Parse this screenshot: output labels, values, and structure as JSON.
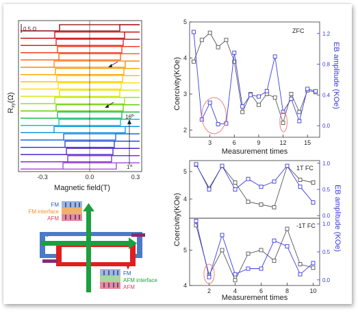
{
  "panel_a": {
    "scale_bar_label": "0.5 Ω",
    "ylabel_main": "R",
    "ylabel_sub": "xy",
    "ylabel_unit": "(Ω)",
    "xlabel": "Magnetic field(T)",
    "xticks": [
      "-0.3",
      "0.0",
      "0.3"
    ],
    "top_label": "16",
    "top_label_sup": "th",
    "bottom_label": "1",
    "bottom_label_sup": "st",
    "colors": [
      "#8b0000",
      "#c00000",
      "#e01818",
      "#f03a1a",
      "#ff5a14",
      "#ff7f00",
      "#ffa000",
      "#ffc200",
      "#ffe000",
      "#d8e800",
      "#a0e000",
      "#55cc00",
      "#1fb84a",
      "#00c0c8",
      "#008ce0",
      "#1060e0",
      "#2038d0",
      "#4a20c8",
      "#7a2ad0",
      "#a040e0"
    ]
  },
  "schematic": {
    "top_stack": {
      "line1": "FM",
      "line2": "FM interface",
      "line3": "AFM"
    },
    "bottom_stack": {
      "line1": "FM",
      "line2": "AFM interface",
      "line3": "AFM"
    },
    "colors": {
      "green": "#1aa040",
      "blue": "#4a7ac8",
      "red": "#e01e1e",
      "purple": "#8a2a6a",
      "fm_text": "#2060c0",
      "fmi_text": "#ff8c1a",
      "afm_text": "#e04060",
      "afmi_text": "#1aa040"
    }
  },
  "chart_data": [
    {
      "type": "line",
      "title": "ZFC",
      "xlabel": "Measurement times",
      "ylabel": "Coercivity(KOe)",
      "y2label": "EB amplitude  (KOe)",
      "xlim": [
        0.5,
        16.5
      ],
      "ylim": [
        1.8,
        5.0
      ],
      "y2lim": [
        -0.15,
        1.35
      ],
      "xticks": [
        3,
        6,
        9,
        12,
        15
      ],
      "yticks": [
        2,
        3,
        4,
        5
      ],
      "y2ticks": [
        0.0,
        0.4,
        0.8,
        1.2
      ],
      "series": [
        {
          "axis": "left",
          "color": "#555555",
          "x": [
            1,
            2,
            3,
            4,
            5,
            6,
            7,
            8,
            9,
            10,
            11,
            12,
            13,
            14,
            15,
            16
          ],
          "values": [
            3.9,
            4.5,
            4.7,
            4.3,
            4.5,
            3.9,
            2.5,
            3.0,
            2.7,
            3.0,
            2.9,
            2.2,
            3.0,
            2.5,
            3.1,
            3.05
          ]
        },
        {
          "axis": "right",
          "color": "#3a3ae0",
          "x": [
            1,
            2,
            3,
            4,
            5,
            6,
            7,
            8,
            9,
            10,
            11,
            12,
            13,
            14,
            15,
            16
          ],
          "values": [
            1.22,
            0.08,
            0.3,
            0.02,
            0.03,
            0.95,
            0.25,
            0.4,
            0.38,
            0.45,
            0.9,
            0.18,
            0.35,
            0.06,
            0.48,
            0.45
          ]
        }
      ],
      "annotations": [
        {
          "shape": "ellipse",
          "x": [
            2,
            5
          ],
          "y": [
            1.9,
            2.9
          ],
          "color": "#f08080"
        },
        {
          "shape": "ellipse",
          "x": [
            11.6,
            12.5
          ],
          "y": [
            1.95,
            2.5
          ],
          "color": "#f08080"
        }
      ]
    },
    {
      "type": "line",
      "title": "1T FC",
      "ylabel": "Coercivity(KOe)",
      "y2label": "EB amplitude  (KOe)",
      "xlim": [
        0.5,
        10.5
      ],
      "ylim": [
        3.3,
        5.4
      ],
      "y2lim": [
        -0.05,
        1.05
      ],
      "yticks": [
        4,
        5
      ],
      "y2ticks": [
        0.0,
        0.5,
        1.0
      ],
      "series": [
        {
          "axis": "left",
          "color": "#555555",
          "x": [
            1,
            2,
            3,
            4,
            5,
            6,
            7,
            8,
            9,
            10
          ],
          "values": [
            5.25,
            4.4,
            5.2,
            4.6,
            3.9,
            3.8,
            3.7,
            5.2,
            4.7,
            4.6
          ]
        },
        {
          "axis": "right",
          "color": "#3a3ae0",
          "x": [
            1,
            2,
            3,
            4,
            5,
            6,
            7,
            8,
            9,
            10
          ],
          "values": [
            0.98,
            0.5,
            0.95,
            0.5,
            0.7,
            0.55,
            0.65,
            0.95,
            0.55,
            0.25
          ]
        }
      ]
    },
    {
      "type": "line",
      "title": "-1T FC",
      "xlabel": "Measurement times",
      "ylabel": "Coercivity(KOe)",
      "y2label": "EB amplitude  (KOe)",
      "xlim": [
        0.5,
        10.5
      ],
      "ylim": [
        4.0,
        5.9
      ],
      "y2lim": [
        -0.1,
        1.1
      ],
      "xticks": [
        2,
        4,
        6,
        8,
        10
      ],
      "yticks": [
        4,
        5
      ],
      "y2ticks": [
        0.0,
        0.5,
        1.0
      ],
      "series": [
        {
          "axis": "left",
          "color": "#555555",
          "x": [
            1,
            2,
            3,
            4,
            5,
            6,
            7,
            8,
            9,
            10
          ],
          "values": [
            5.7,
            4.3,
            5.0,
            4.15,
            4.9,
            5.0,
            4.7,
            5.6,
            4.6,
            4.5
          ]
        },
        {
          "axis": "right",
          "color": "#3a3ae0",
          "x": [
            1,
            2,
            3,
            4,
            5,
            6,
            7,
            8,
            9,
            10
          ],
          "values": [
            1.05,
            0.05,
            0.8,
            0.1,
            0.2,
            0.2,
            0.7,
            0.6,
            0.1,
            0.3
          ]
        }
      ],
      "annotations": [
        {
          "shape": "ellipse",
          "x": [
            1.6,
            2.4
          ],
          "y": [
            4.05,
            4.6
          ],
          "color": "#f08080"
        }
      ]
    }
  ]
}
